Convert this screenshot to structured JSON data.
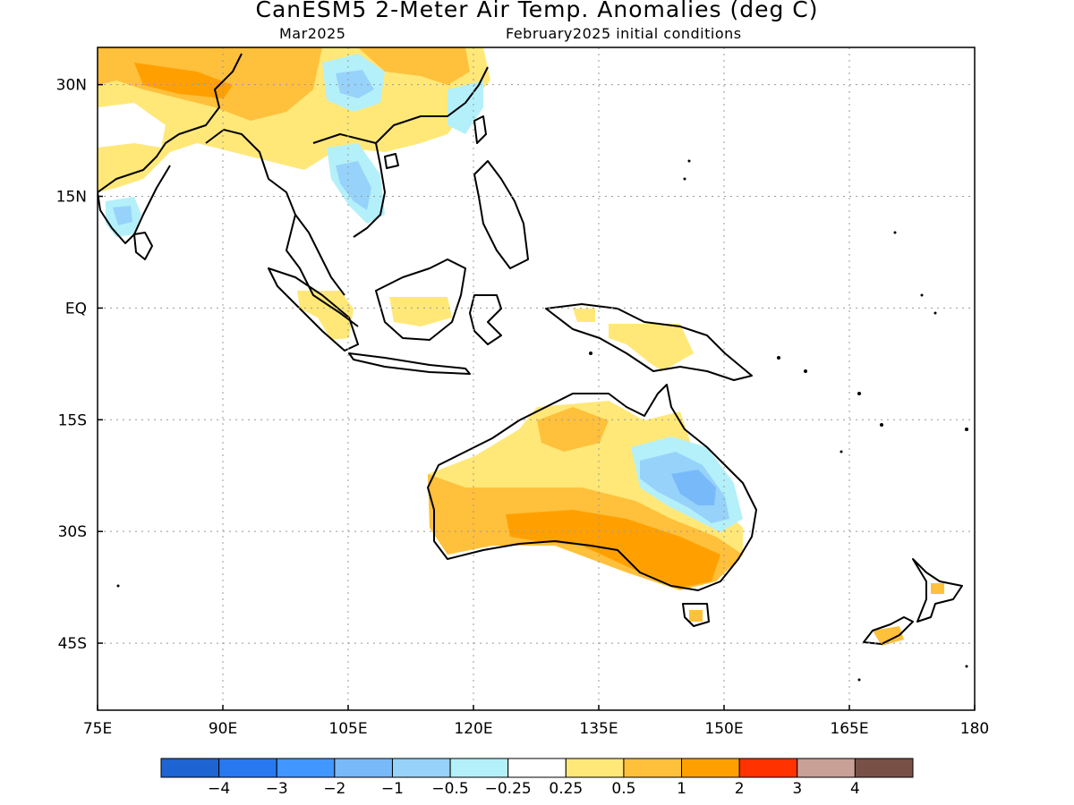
{
  "title": "CanESM5 2-Meter Air Temp. Anomalies (deg C)",
  "subtitle_left": "Mar2025",
  "subtitle_right": "February2025 initial conditions",
  "map": {
    "lon_range": [
      75,
      180
    ],
    "lat_range": [
      -54,
      35
    ],
    "x_ticks": [
      {
        "value": 75,
        "label": "75E"
      },
      {
        "value": 90,
        "label": "90E"
      },
      {
        "value": 105,
        "label": "105E"
      },
      {
        "value": 120,
        "label": "120E"
      },
      {
        "value": 135,
        "label": "135E"
      },
      {
        "value": 150,
        "label": "150E"
      },
      {
        "value": 165,
        "label": "165E"
      },
      {
        "value": 180,
        "label": "180"
      }
    ],
    "y_ticks": [
      {
        "value": 30,
        "label": "30N"
      },
      {
        "value": 15,
        "label": "15N"
      },
      {
        "value": 0,
        "label": "EQ"
      },
      {
        "value": -15,
        "label": "15S"
      },
      {
        "value": -30,
        "label": "30S"
      },
      {
        "value": -45,
        "label": "45S"
      }
    ],
    "grid": "dotted"
  },
  "colorbar": {
    "colors": [
      "#1e64d2",
      "#2878f0",
      "#4196ff",
      "#78b9fa",
      "#96d2fa",
      "#b4f0fa",
      "#ffffff",
      "#ffe878",
      "#ffc03c",
      "#ffa000",
      "#ff3200",
      "#c8a096",
      "#785046"
    ],
    "labels": [
      "-4",
      "-3",
      "-2",
      "-1",
      "-0.5",
      "-0.25",
      "0.25",
      "0.5",
      "1",
      "2",
      "3",
      "4"
    ]
  },
  "colors": {
    "anom_0_5": "#ffe878",
    "anom_1": "#ffc03c",
    "anom_2": "#ffa000",
    "anom_m0_25": "#b4f0fa",
    "anom_m0_5": "#96d2fa",
    "anom_m1": "#78b9fa"
  }
}
